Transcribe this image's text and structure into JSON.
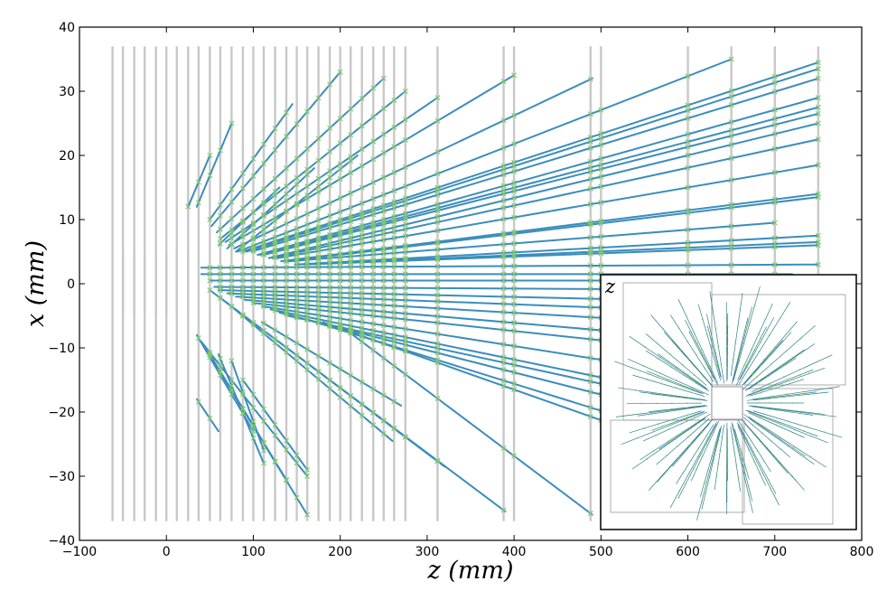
{
  "chart_data": {
    "type": "line",
    "xlabel": "z (mm)",
    "ylabel": "x (mm)",
    "xlim": [
      -100,
      800
    ],
    "ylim": [
      -40,
      40
    ],
    "xticks": [
      -100,
      0,
      100,
      200,
      300,
      400,
      500,
      600,
      700,
      800
    ],
    "yticks": [
      -40,
      -30,
      -20,
      -10,
      0,
      10,
      20,
      30,
      40
    ],
    "xtick_labels": [
      "−100",
      "0",
      "100",
      "200",
      "300",
      "400",
      "500",
      "600",
      "700",
      "800"
    ],
    "ytick_labels": [
      "−40",
      "−30",
      "−20",
      "−10",
      "0",
      "10",
      "20",
      "30",
      "40"
    ],
    "grid": false,
    "colors": {
      "track": "#3b8dbd",
      "hit": "#7ec86c",
      "detector": "#c8c8c8"
    },
    "detector_planes": {
      "z_full": [
        -62,
        -50,
        -37,
        -25,
        -12,
        0,
        12,
        25,
        37,
        50,
        62,
        75,
        88,
        100,
        112,
        125,
        138,
        150,
        162,
        175,
        188,
        200,
        212,
        225,
        238,
        250,
        262,
        275,
        312,
        388,
        400,
        488,
        500,
        600,
        650,
        700,
        750
      ],
      "z_short": [
        -50,
        -37,
        -25,
        -12,
        0,
        12,
        25
      ]
    },
    "tracks": [
      [
        25,
        12,
        50,
        20
      ],
      [
        35,
        12,
        75,
        25
      ],
      [
        50,
        10,
        145,
        28
      ],
      [
        52,
        9,
        200,
        33
      ],
      [
        58,
        8,
        250,
        32
      ],
      [
        62,
        7,
        275,
        30
      ],
      [
        68,
        6.5,
        312,
        29
      ],
      [
        72,
        6,
        400,
        32.5
      ],
      [
        78,
        5.5,
        490,
        32
      ],
      [
        82,
        5,
        650,
        35
      ],
      [
        88,
        5,
        750,
        34.5
      ],
      [
        92,
        5,
        750,
        33.5
      ],
      [
        98,
        5,
        750,
        32
      ],
      [
        105,
        4.5,
        750,
        29
      ],
      [
        108,
        4.5,
        750,
        27.5
      ],
      [
        112,
        4.5,
        750,
        26.5
      ],
      [
        118,
        4,
        750,
        25
      ],
      [
        122,
        4,
        750,
        22.5
      ],
      [
        128,
        4,
        750,
        18.5
      ],
      [
        132,
        3.5,
        750,
        14
      ],
      [
        138,
        3.5,
        750,
        13.5
      ],
      [
        142,
        3.5,
        700,
        9.5
      ],
      [
        148,
        3,
        750,
        7.5
      ],
      [
        152,
        3,
        750,
        6.5
      ],
      [
        158,
        3,
        750,
        6
      ],
      [
        60,
        6,
        130,
        15
      ],
      [
        70,
        5.5,
        170,
        18
      ],
      [
        80,
        5,
        220,
        20
      ],
      [
        40,
        2.5,
        750,
        3
      ],
      [
        40,
        1.5,
        720,
        1.5
      ],
      [
        50,
        0.5,
        700,
        0.5
      ],
      [
        55,
        -0.5,
        740,
        -1
      ],
      [
        60,
        -1,
        700,
        -3
      ],
      [
        70,
        -1.5,
        650,
        -4.5
      ],
      [
        80,
        -2,
        650,
        -6.5
      ],
      [
        90,
        -2.5,
        650,
        -9
      ],
      [
        100,
        -3,
        650,
        -11
      ],
      [
        110,
        -3.5,
        600,
        -14
      ],
      [
        120,
        -4,
        550,
        -16
      ],
      [
        130,
        -4.5,
        550,
        -19
      ],
      [
        140,
        -5,
        650,
        -20
      ],
      [
        160,
        -5.5,
        600,
        -24
      ],
      [
        180,
        -6,
        620,
        -27
      ],
      [
        200,
        -6.5,
        490,
        -36
      ],
      [
        50,
        -1,
        390,
        -35.5
      ],
      [
        60,
        -2,
        320,
        -28.5
      ],
      [
        70,
        -3,
        260,
        -24.5
      ],
      [
        110,
        -6,
        270,
        -19
      ],
      [
        35,
        -8,
        100,
        -23
      ],
      [
        40,
        -9,
        162,
        -30
      ],
      [
        45,
        -10,
        162,
        -36
      ],
      [
        50,
        -11,
        140,
        -31
      ],
      [
        35,
        -18,
        60,
        -23
      ],
      [
        60,
        -11,
        112,
        -28
      ],
      [
        75,
        -12,
        112,
        -26
      ],
      [
        88,
        -15,
        162,
        -29
      ]
    ]
  }
}
